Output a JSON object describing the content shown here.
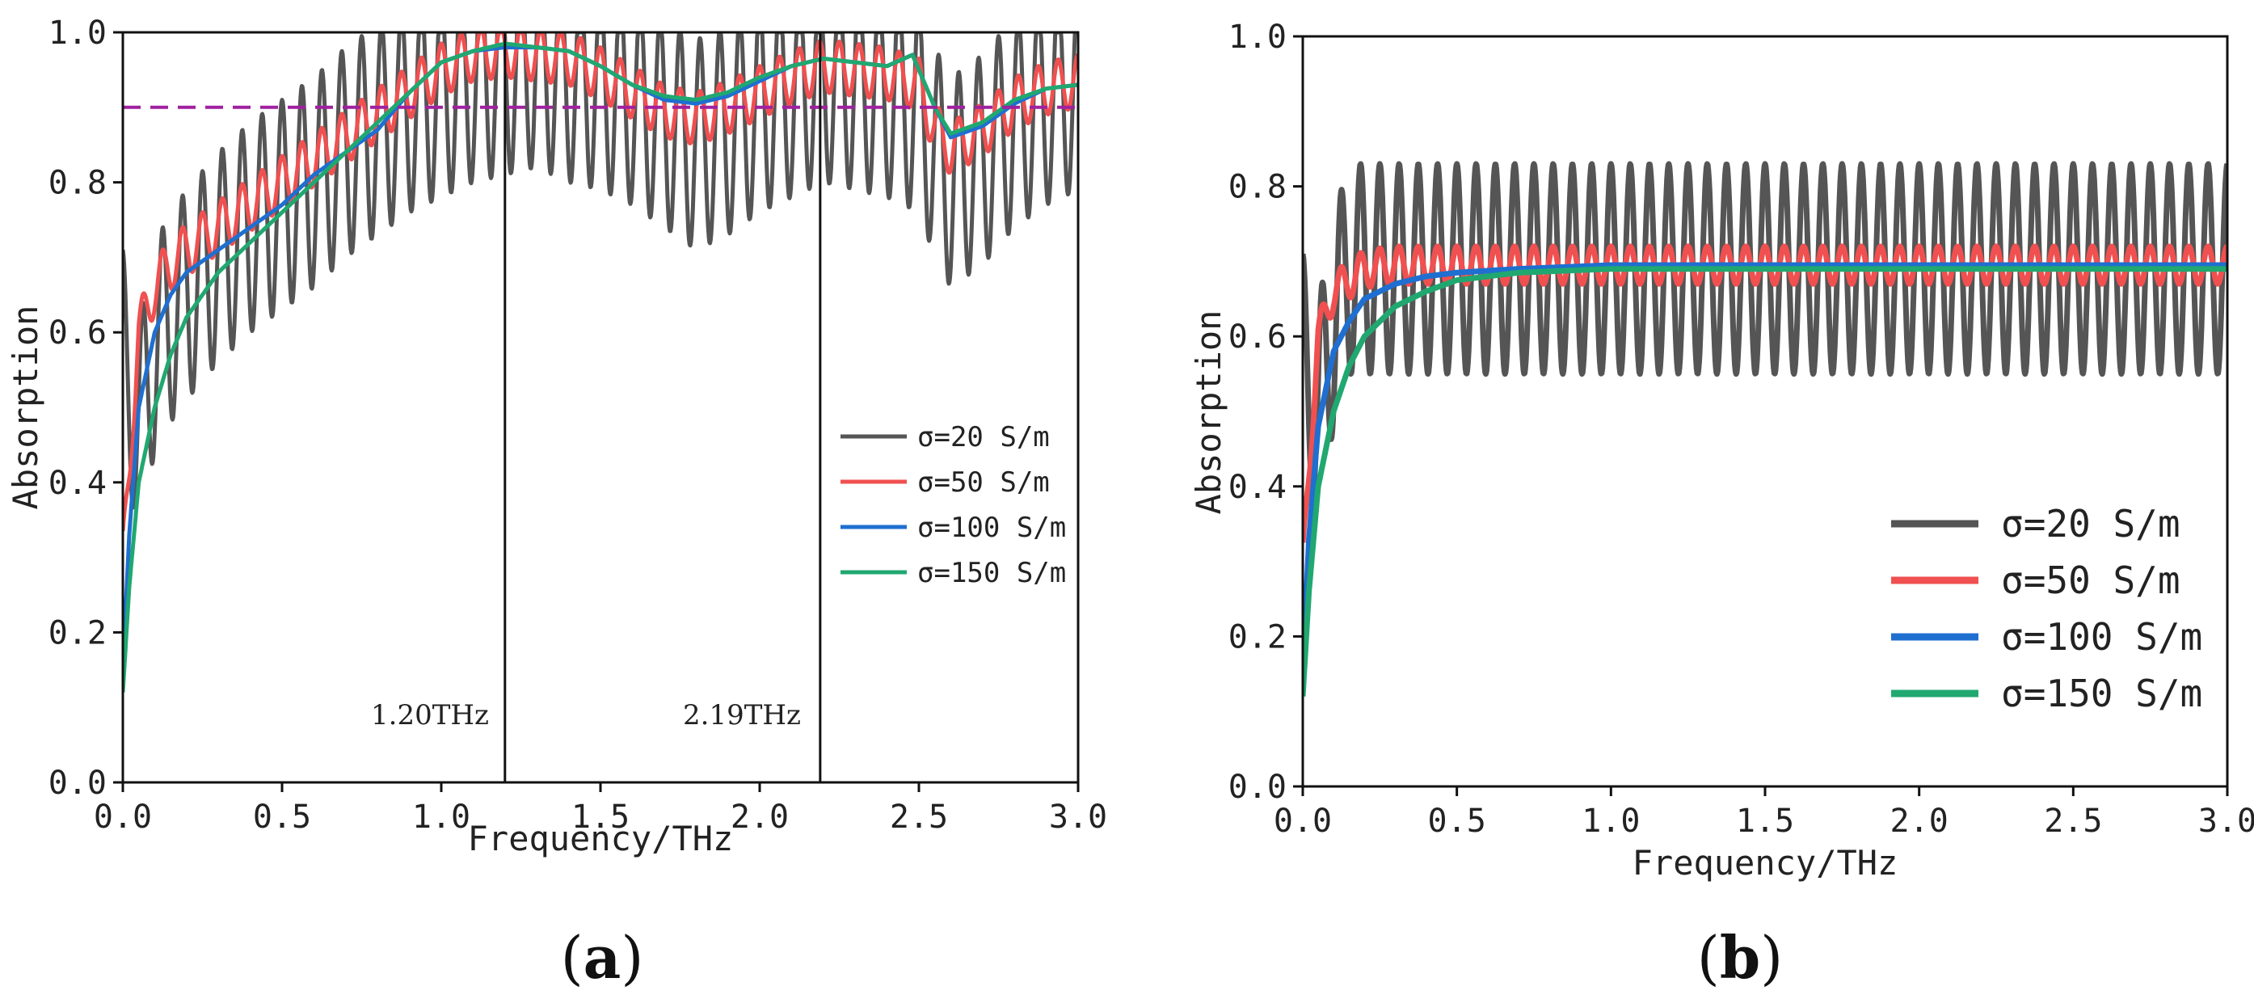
{
  "colors": {
    "sigma20": "#555555",
    "sigma50": "#f05050",
    "sigma100": "#1f6fd0",
    "sigma150": "#20a870",
    "threshold": "#a020a0",
    "marker": "#111111"
  },
  "chart_data": [
    {
      "panel": "a",
      "type": "line",
      "xlabel": "Frequency/THz",
      "ylabel": "Absorption",
      "xlim": [
        0.0,
        3.0
      ],
      "ylim": [
        0.0,
        1.0
      ],
      "xticks": [
        "0.0",
        "0.5",
        "1.0",
        "1.5",
        "2.0",
        "2.5",
        "3.0"
      ],
      "yticks": [
        "0.0",
        "0.2",
        "0.4",
        "0.6",
        "0.8",
        "1.0"
      ],
      "threshold": 0.9,
      "markers": [
        {
          "x": 1.2,
          "label": "1.20THz"
        },
        {
          "x": 2.19,
          "label": "2.19THz"
        }
      ],
      "legend_position": "center-right",
      "series": [
        {
          "name": "σ=20 S/m",
          "key": "sigma20",
          "x": [
            0.0,
            0.05,
            0.1,
            0.15,
            0.2,
            0.3,
            0.4,
            0.5,
            0.6,
            0.7,
            0.8,
            0.9,
            1.0,
            1.1,
            1.2,
            1.3,
            1.4,
            1.5,
            1.6,
            1.7,
            1.8,
            1.9,
            2.0,
            2.1,
            2.2,
            2.3,
            2.4,
            2.5,
            2.55,
            2.6,
            2.7,
            2.8,
            2.9,
            3.0
          ],
          "values": [
            0.57,
            0.47,
            0.58,
            0.62,
            0.65,
            0.7,
            0.74,
            0.77,
            0.8,
            0.84,
            0.87,
            0.9,
            0.92,
            0.94,
            0.95,
            0.96,
            0.94,
            0.93,
            0.91,
            0.88,
            0.85,
            0.87,
            0.9,
            0.92,
            0.94,
            0.93,
            0.92,
            0.9,
            0.84,
            0.8,
            0.83,
            0.88,
            0.91,
            0.93
          ],
          "ripple": 0.14,
          "ripple_period": 0.0625
        },
        {
          "name": "σ=50 S/m",
          "key": "sigma50",
          "x": [
            0.0,
            0.05,
            0.1,
            0.15,
            0.2,
            0.3,
            0.4,
            0.5,
            0.6,
            0.7,
            0.8,
            0.9,
            1.0,
            1.1,
            1.2,
            1.3,
            1.4,
            1.5,
            1.6,
            1.7,
            1.8,
            1.9,
            2.0,
            2.1,
            2.2,
            2.3,
            2.4,
            2.5,
            2.55,
            2.6,
            2.7,
            2.8,
            2.9,
            3.0
          ],
          "values": [
            0.3,
            0.6,
            0.66,
            0.69,
            0.71,
            0.74,
            0.77,
            0.8,
            0.83,
            0.86,
            0.89,
            0.92,
            0.95,
            0.97,
            0.975,
            0.97,
            0.965,
            0.945,
            0.92,
            0.895,
            0.885,
            0.9,
            0.92,
            0.94,
            0.955,
            0.95,
            0.945,
            0.93,
            0.87,
            0.845,
            0.87,
            0.905,
            0.925,
            0.935
          ],
          "ripple": 0.035,
          "ripple_period": 0.0625
        },
        {
          "name": "σ=100 S/m",
          "key": "sigma100",
          "x": [
            0.0,
            0.02,
            0.05,
            0.1,
            0.15,
            0.2,
            0.3,
            0.4,
            0.5,
            0.6,
            0.7,
            0.8,
            0.9,
            1.0,
            1.1,
            1.2,
            1.3,
            1.4,
            1.5,
            1.6,
            1.7,
            1.8,
            1.9,
            2.0,
            2.1,
            2.2,
            2.3,
            2.4,
            2.48,
            2.55,
            2.6,
            2.7,
            2.8,
            2.9,
            3.0
          ],
          "values": [
            0.15,
            0.33,
            0.5,
            0.6,
            0.65,
            0.68,
            0.71,
            0.74,
            0.77,
            0.81,
            0.84,
            0.87,
            0.92,
            0.96,
            0.975,
            0.98,
            0.98,
            0.975,
            0.955,
            0.93,
            0.91,
            0.905,
            0.915,
            0.935,
            0.955,
            0.965,
            0.96,
            0.955,
            0.97,
            0.9,
            0.86,
            0.875,
            0.905,
            0.925,
            0.93
          ],
          "ripple": 0,
          "ripple_period": 1
        },
        {
          "name": "σ=150 S/m",
          "key": "sigma150",
          "x": [
            0.0,
            0.02,
            0.05,
            0.1,
            0.15,
            0.2,
            0.3,
            0.4,
            0.5,
            0.6,
            0.7,
            0.8,
            0.9,
            1.0,
            1.1,
            1.2,
            1.3,
            1.4,
            1.5,
            1.6,
            1.7,
            1.8,
            1.9,
            2.0,
            2.1,
            2.2,
            2.3,
            2.4,
            2.48,
            2.55,
            2.6,
            2.7,
            2.8,
            2.9,
            3.0
          ],
          "values": [
            0.12,
            0.26,
            0.4,
            0.5,
            0.57,
            0.62,
            0.68,
            0.72,
            0.76,
            0.8,
            0.84,
            0.88,
            0.92,
            0.96,
            0.975,
            0.985,
            0.98,
            0.975,
            0.955,
            0.93,
            0.915,
            0.91,
            0.92,
            0.94,
            0.955,
            0.965,
            0.96,
            0.955,
            0.97,
            0.9,
            0.865,
            0.88,
            0.91,
            0.925,
            0.93
          ],
          "ripple": 0,
          "ripple_period": 1
        }
      ]
    },
    {
      "panel": "b",
      "type": "line",
      "xlabel": "Frequency/THz",
      "ylabel": "Absorption",
      "xlim": [
        0.0,
        3.0
      ],
      "ylim": [
        0.0,
        1.0
      ],
      "xticks": [
        "0.0",
        "0.5",
        "1.0",
        "1.5",
        "2.0",
        "2.5",
        "3.0"
      ],
      "yticks": [
        "0.0",
        "0.2",
        "0.4",
        "0.6",
        "0.8",
        "1.0"
      ],
      "legend_position": "lower-right",
      "series": [
        {
          "name": "σ=20 S/m",
          "key": "sigma20",
          "x": [
            0.0,
            0.05,
            0.1,
            0.15,
            0.3,
            3.0
          ],
          "values": [
            0.57,
            0.5,
            0.62,
            0.69,
            0.69,
            0.69
          ],
          "ripple": 0.14,
          "ripple_period": 0.0625
        },
        {
          "name": "σ=50 S/m",
          "key": "sigma50",
          "x": [
            0.0,
            0.05,
            0.1,
            0.2,
            0.3,
            3.0
          ],
          "values": [
            0.3,
            0.6,
            0.66,
            0.69,
            0.695,
            0.695
          ],
          "ripple": 0.025,
          "ripple_period": 0.0625
        },
        {
          "name": "σ=100 S/m",
          "key": "sigma100",
          "x": [
            0.0,
            0.02,
            0.05,
            0.1,
            0.15,
            0.2,
            0.3,
            0.4,
            0.5,
            0.7,
            1.0,
            3.0
          ],
          "values": [
            0.15,
            0.33,
            0.48,
            0.58,
            0.62,
            0.65,
            0.67,
            0.68,
            0.685,
            0.69,
            0.695,
            0.695
          ],
          "ripple": 0,
          "ripple_period": 1
        },
        {
          "name": "σ=150 S/m",
          "key": "sigma150",
          "x": [
            0.0,
            0.02,
            0.05,
            0.1,
            0.15,
            0.2,
            0.3,
            0.4,
            0.5,
            0.7,
            1.0,
            3.0
          ],
          "values": [
            0.12,
            0.26,
            0.4,
            0.5,
            0.56,
            0.6,
            0.64,
            0.66,
            0.675,
            0.685,
            0.69,
            0.69
          ],
          "ripple": 0,
          "ripple_period": 1
        }
      ]
    }
  ],
  "captions": {
    "a": {
      "open": "(",
      "letter": "a",
      "close": ")"
    },
    "b": {
      "open": "(",
      "letter": "b",
      "close": ")"
    }
  }
}
